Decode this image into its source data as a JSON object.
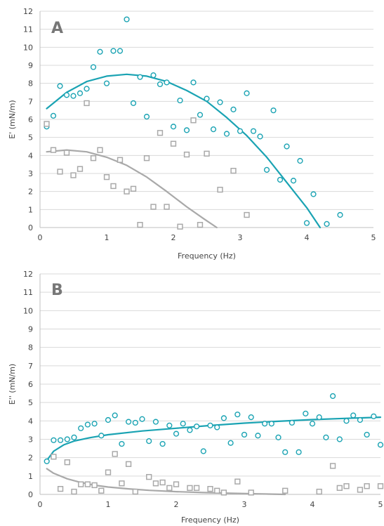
{
  "colors": {
    "teal": "#1aa3b3",
    "gray": "#a9a9a9",
    "grid": "#d9d9d9",
    "axis": "#bfbfbf"
  },
  "chart_data": [
    {
      "type": "scatter",
      "panel_label": "A",
      "xlabel": "Frequency (Hz)",
      "ylabel": "E' (mN/m)",
      "xlim": [
        0,
        5
      ],
      "ylim": [
        0,
        12
      ],
      "xticks": [
        "0",
        "1",
        "2",
        "3",
        "4",
        "5"
      ],
      "yticks": [
        "0",
        "1",
        "2",
        "3",
        "4",
        "5",
        "6",
        "7",
        "8",
        "9",
        "10",
        "11",
        "12"
      ],
      "grid": "horizontal",
      "series": [
        {
          "marker": "circle",
          "color": "#1aa3b3",
          "points": [
            [
              0.1,
              5.6
            ],
            [
              0.2,
              6.2
            ],
            [
              0.3,
              7.85
            ],
            [
              0.4,
              7.35
            ],
            [
              0.5,
              7.3
            ],
            [
              0.6,
              7.45
            ],
            [
              0.7,
              7.7
            ],
            [
              0.8,
              8.9
            ],
            [
              0.9,
              9.75
            ],
            [
              1.0,
              8.0
            ],
            [
              1.1,
              9.8
            ],
            [
              1.2,
              9.8
            ],
            [
              1.3,
              11.55
            ],
            [
              1.4,
              6.9
            ],
            [
              1.5,
              8.35
            ],
            [
              1.6,
              6.15
            ],
            [
              1.7,
              8.45
            ],
            [
              1.8,
              7.95
            ],
            [
              1.9,
              8.05
            ],
            [
              2.0,
              5.6
            ],
            [
              2.1,
              7.05
            ],
            [
              2.2,
              5.4
            ],
            [
              2.3,
              8.05
            ],
            [
              2.4,
              6.25
            ],
            [
              2.5,
              7.15
            ],
            [
              2.6,
              5.45
            ],
            [
              2.7,
              6.95
            ],
            [
              2.8,
              5.2
            ],
            [
              2.9,
              6.55
            ],
            [
              3.0,
              5.35
            ],
            [
              3.1,
              7.45
            ],
            [
              3.2,
              5.35
            ],
            [
              3.3,
              5.05
            ],
            [
              3.4,
              3.2
            ],
            [
              3.5,
              6.5
            ],
            [
              3.6,
              2.65
            ],
            [
              3.7,
              4.5
            ],
            [
              3.8,
              2.6
            ],
            [
              3.9,
              3.7
            ],
            [
              4.0,
              0.25
            ],
            [
              4.1,
              1.85
            ],
            [
              4.3,
              0.2
            ],
            [
              4.5,
              0.7
            ]
          ],
          "trend": [
            [
              0.1,
              6.6
            ],
            [
              0.4,
              7.5
            ],
            [
              0.7,
              8.1
            ],
            [
              1.0,
              8.4
            ],
            [
              1.3,
              8.5
            ],
            [
              1.6,
              8.4
            ],
            [
              1.9,
              8.1
            ],
            [
              2.2,
              7.6
            ],
            [
              2.5,
              7.0
            ],
            [
              2.8,
              6.1
            ],
            [
              3.1,
              5.1
            ],
            [
              3.4,
              3.9
            ],
            [
              3.7,
              2.5
            ],
            [
              4.0,
              1.1
            ],
            [
              4.2,
              0.0
            ]
          ]
        },
        {
          "marker": "square",
          "color": "#a9a9a9",
          "points": [
            [
              0.1,
              5.75
            ],
            [
              0.2,
              4.3
            ],
            [
              0.3,
              3.1
            ],
            [
              0.4,
              4.15
            ],
            [
              0.5,
              2.9
            ],
            [
              0.6,
              3.25
            ],
            [
              0.7,
              6.9
            ],
            [
              0.8,
              3.85
            ],
            [
              0.9,
              4.3
            ],
            [
              1.0,
              2.8
            ],
            [
              1.1,
              2.3
            ],
            [
              1.2,
              3.75
            ],
            [
              1.3,
              2.0
            ],
            [
              1.4,
              2.15
            ],
            [
              1.5,
              0.15
            ],
            [
              1.6,
              3.85
            ],
            [
              1.7,
              1.15
            ],
            [
              1.8,
              5.25
            ],
            [
              1.9,
              1.15
            ],
            [
              2.0,
              4.65
            ],
            [
              2.1,
              0.05
            ],
            [
              2.2,
              4.05
            ],
            [
              2.3,
              5.95
            ],
            [
              2.4,
              0.15
            ],
            [
              2.5,
              4.1
            ],
            [
              2.7,
              2.1
            ],
            [
              2.9,
              3.15
            ],
            [
              3.1,
              0.7
            ]
          ],
          "trend": [
            [
              0.1,
              4.2
            ],
            [
              0.4,
              4.3
            ],
            [
              0.7,
              4.2
            ],
            [
              1.0,
              3.9
            ],
            [
              1.3,
              3.45
            ],
            [
              1.6,
              2.8
            ],
            [
              1.9,
              2.0
            ],
            [
              2.2,
              1.15
            ],
            [
              2.45,
              0.5
            ],
            [
              2.65,
              0.0
            ]
          ]
        }
      ]
    },
    {
      "type": "scatter",
      "panel_label": "B",
      "xlabel": "Frequency (Hz)",
      "ylabel": "E'' (mN/m)",
      "xlim": [
        0,
        5
      ],
      "ylim": [
        0,
        12
      ],
      "xticks": [
        "0",
        "1",
        "2",
        "3",
        "4",
        "5"
      ],
      "yticks": [
        "0",
        "1",
        "2",
        "3",
        "4",
        "5",
        "6",
        "7",
        "8",
        "9",
        "10",
        "11",
        "12"
      ],
      "grid": "horizontal",
      "series": [
        {
          "marker": "circle",
          "color": "#1aa3b3",
          "points": [
            [
              0.1,
              1.8
            ],
            [
              0.2,
              2.95
            ],
            [
              0.3,
              2.95
            ],
            [
              0.4,
              3.0
            ],
            [
              0.5,
              3.1
            ],
            [
              0.6,
              3.6
            ],
            [
              0.7,
              3.8
            ],
            [
              0.8,
              3.85
            ],
            [
              0.9,
              3.2
            ],
            [
              1.0,
              4.05
            ],
            [
              1.1,
              4.3
            ],
            [
              1.2,
              2.75
            ],
            [
              1.3,
              3.95
            ],
            [
              1.4,
              3.9
            ],
            [
              1.5,
              4.1
            ],
            [
              1.6,
              2.9
            ],
            [
              1.7,
              3.95
            ],
            [
              1.8,
              2.75
            ],
            [
              1.9,
              3.75
            ],
            [
              2.0,
              3.3
            ],
            [
              2.1,
              3.85
            ],
            [
              2.2,
              3.5
            ],
            [
              2.3,
              3.7
            ],
            [
              2.4,
              2.35
            ],
            [
              2.5,
              3.75
            ],
            [
              2.6,
              3.65
            ],
            [
              2.7,
              4.15
            ],
            [
              2.8,
              2.8
            ],
            [
              2.9,
              4.35
            ],
            [
              3.0,
              3.25
            ],
            [
              3.1,
              4.2
            ],
            [
              3.2,
              3.2
            ],
            [
              3.3,
              3.85
            ],
            [
              3.4,
              3.85
            ],
            [
              3.5,
              3.1
            ],
            [
              3.6,
              2.3
            ],
            [
              3.7,
              3.9
            ],
            [
              3.8,
              2.3
            ],
            [
              3.9,
              4.4
            ],
            [
              4.0,
              3.85
            ],
            [
              4.1,
              4.2
            ],
            [
              4.2,
              3.1
            ],
            [
              4.3,
              5.35
            ],
            [
              4.4,
              3.0
            ],
            [
              4.5,
              4.0
            ],
            [
              4.6,
              4.3
            ],
            [
              4.7,
              4.05
            ],
            [
              4.8,
              3.25
            ],
            [
              4.9,
              4.25
            ],
            [
              5.0,
              2.7
            ]
          ],
          "trend": [
            [
              0.1,
              1.85
            ],
            [
              0.2,
              2.35
            ],
            [
              0.35,
              2.7
            ],
            [
              0.5,
              2.9
            ],
            [
              0.75,
              3.1
            ],
            [
              1.0,
              3.25
            ],
            [
              1.5,
              3.45
            ],
            [
              2.0,
              3.6
            ],
            [
              2.5,
              3.75
            ],
            [
              3.0,
              3.88
            ],
            [
              3.5,
              3.98
            ],
            [
              4.0,
              4.07
            ],
            [
              4.5,
              4.14
            ],
            [
              5.0,
              4.2
            ]
          ]
        },
        {
          "marker": "square",
          "color": "#a9a9a9",
          "points": [
            [
              0.2,
              2.05
            ],
            [
              0.3,
              0.3
            ],
            [
              0.4,
              1.75
            ],
            [
              0.5,
              0.15
            ],
            [
              0.6,
              0.55
            ],
            [
              0.7,
              0.55
            ],
            [
              0.8,
              0.5
            ],
            [
              0.9,
              0.2
            ],
            [
              1.0,
              1.2
            ],
            [
              1.1,
              2.2
            ],
            [
              1.2,
              0.6
            ],
            [
              1.3,
              1.65
            ],
            [
              1.4,
              0.15
            ],
            [
              1.6,
              0.95
            ],
            [
              1.7,
              0.6
            ],
            [
              1.8,
              0.65
            ],
            [
              1.9,
              0.35
            ],
            [
              2.0,
              0.55
            ],
            [
              2.2,
              0.35
            ],
            [
              2.3,
              0.35
            ],
            [
              2.5,
              0.3
            ],
            [
              2.6,
              0.2
            ],
            [
              2.7,
              0.1
            ],
            [
              2.9,
              0.7
            ],
            [
              3.1,
              0.1
            ],
            [
              3.6,
              0.2
            ],
            [
              4.1,
              0.15
            ],
            [
              4.3,
              1.55
            ],
            [
              4.4,
              0.35
            ],
            [
              4.5,
              0.45
            ],
            [
              4.7,
              0.25
            ],
            [
              4.8,
              0.45
            ],
            [
              5.0,
              0.45
            ]
          ],
          "trend": [
            [
              0.1,
              1.4
            ],
            [
              0.2,
              1.15
            ],
            [
              0.4,
              0.85
            ],
            [
              0.6,
              0.65
            ],
            [
              0.8,
              0.5
            ],
            [
              1.0,
              0.4
            ],
            [
              1.3,
              0.3
            ],
            [
              1.6,
              0.22
            ],
            [
              2.0,
              0.15
            ],
            [
              2.4,
              0.1
            ],
            [
              2.8,
              0.06
            ],
            [
              3.2,
              0.03
            ],
            [
              3.6,
              0.0
            ]
          ]
        }
      ]
    }
  ]
}
